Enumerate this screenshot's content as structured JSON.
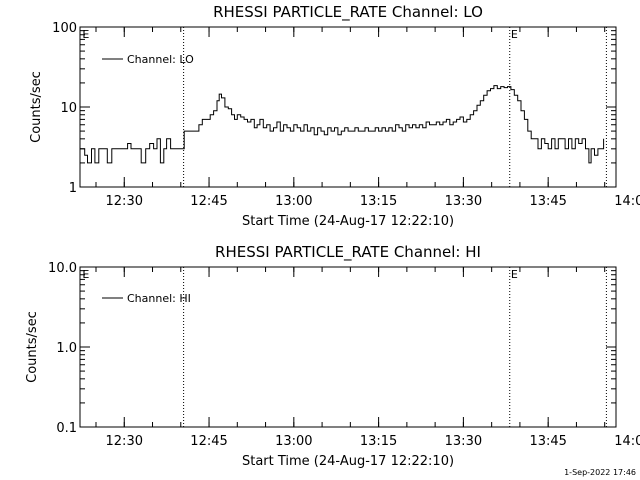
{
  "chart_data": [
    {
      "type": "line",
      "title": "RHESSI PARTICLE_RATE Channel: LO",
      "xlabel": "Start Time (24-Aug-17 12:22:10)",
      "ylabel": "Counts/sec",
      "yscale": "log",
      "ylim": [
        1,
        100
      ],
      "yticks": [
        1,
        10,
        100
      ],
      "yticklabels": [
        "1",
        "10",
        "100"
      ],
      "xlim_minutes": [
        22.17,
        117.0
      ],
      "xticks_minutes": [
        30,
        45,
        60,
        75,
        90,
        105,
        120
      ],
      "xticklabels": [
        "12:30",
        "12:45",
        "13:00",
        "13:15",
        "13:30",
        "13:45",
        "14:00"
      ],
      "vlines_minutes": [
        40.5,
        98.2,
        115.3
      ],
      "markers": [
        {
          "label": "E",
          "x_minutes": 22.6
        },
        {
          "label": "E",
          "x_minutes": 98.4
        }
      ],
      "grid": false,
      "legend_position": "top-left",
      "series": [
        {
          "name": "Channel: LO",
          "points": [
            [
              22.2,
              3
            ],
            [
              23.0,
              2.5
            ],
            [
              23.5,
              2
            ],
            [
              24.2,
              3
            ],
            [
              24.8,
              2
            ],
            [
              25.5,
              3
            ],
            [
              26.5,
              3
            ],
            [
              27.0,
              2
            ],
            [
              27.8,
              3
            ],
            [
              28.5,
              3
            ],
            [
              29.3,
              3
            ],
            [
              30.0,
              3
            ],
            [
              30.6,
              3.5
            ],
            [
              31.2,
              3
            ],
            [
              32.2,
              3
            ],
            [
              33.0,
              2
            ],
            [
              33.8,
              3
            ],
            [
              34.5,
              3.5
            ],
            [
              35.2,
              3
            ],
            [
              35.8,
              4
            ],
            [
              36.4,
              2
            ],
            [
              37.0,
              3
            ],
            [
              37.5,
              4
            ],
            [
              38.2,
              3
            ],
            [
              39.0,
              3
            ],
            [
              40.0,
              3
            ],
            [
              40.6,
              5
            ],
            [
              41.5,
              5
            ],
            [
              42.5,
              5
            ],
            [
              43.2,
              6
            ],
            [
              43.8,
              7
            ],
            [
              44.5,
              7
            ],
            [
              45.2,
              8
            ],
            [
              45.8,
              9
            ],
            [
              46.4,
              12
            ],
            [
              46.8,
              14.5
            ],
            [
              47.2,
              13
            ],
            [
              47.8,
              10
            ],
            [
              48.4,
              9.5
            ],
            [
              49.0,
              8
            ],
            [
              49.5,
              7
            ],
            [
              50.0,
              8
            ],
            [
              50.6,
              7.5
            ],
            [
              51.2,
              7
            ],
            [
              51.8,
              6.5
            ],
            [
              52.4,
              7
            ],
            [
              53.0,
              5.5
            ],
            [
              53.5,
              6
            ],
            [
              54.0,
              7
            ],
            [
              54.6,
              5.5
            ],
            [
              55.2,
              6
            ],
            [
              55.8,
              5
            ],
            [
              56.4,
              5.5
            ],
            [
              57.0,
              6.5
            ],
            [
              57.6,
              5
            ],
            [
              58.2,
              6
            ],
            [
              58.8,
              5.5
            ],
            [
              59.4,
              5
            ],
            [
              60.0,
              6
            ],
            [
              60.6,
              5.5
            ],
            [
              61.2,
              5
            ],
            [
              61.8,
              6
            ],
            [
              62.4,
              5
            ],
            [
              63.0,
              5.5
            ],
            [
              63.6,
              4.5
            ],
            [
              64.2,
              5.5
            ],
            [
              64.8,
              5
            ],
            [
              65.4,
              4.5
            ],
            [
              66.0,
              5.5
            ],
            [
              66.6,
              5
            ],
            [
              67.2,
              5.5
            ],
            [
              67.8,
              4.5
            ],
            [
              68.4,
              5
            ],
            [
              69.0,
              5.5
            ],
            [
              69.6,
              5
            ],
            [
              70.2,
              5
            ],
            [
              70.8,
              5.5
            ],
            [
              71.4,
              5
            ],
            [
              72.0,
              5
            ],
            [
              72.6,
              5.5
            ],
            [
              73.2,
              5
            ],
            [
              73.8,
              5
            ],
            [
              74.4,
              5.5
            ],
            [
              75.0,
              5
            ],
            [
              75.6,
              5.5
            ],
            [
              76.2,
              5
            ],
            [
              76.8,
              5.5
            ],
            [
              77.4,
              5
            ],
            [
              78.0,
              6
            ],
            [
              78.6,
              5.5
            ],
            [
              79.2,
              5
            ],
            [
              79.8,
              6
            ],
            [
              80.4,
              5.5
            ],
            [
              81.0,
              6
            ],
            [
              81.6,
              5.5
            ],
            [
              82.2,
              6
            ],
            [
              82.8,
              5.5
            ],
            [
              83.4,
              6.5
            ],
            [
              84.0,
              6
            ],
            [
              84.6,
              6
            ],
            [
              85.2,
              6.5
            ],
            [
              85.8,
              6
            ],
            [
              86.4,
              6.5
            ],
            [
              87.0,
              7
            ],
            [
              87.6,
              6
            ],
            [
              88.2,
              6.5
            ],
            [
              88.8,
              7
            ],
            [
              89.4,
              7.5
            ],
            [
              90.0,
              6.5
            ],
            [
              90.6,
              7
            ],
            [
              91.2,
              8
            ],
            [
              91.8,
              9
            ],
            [
              92.4,
              10.5
            ],
            [
              93.0,
              12
            ],
            [
              93.6,
              14
            ],
            [
              94.2,
              16
            ],
            [
              94.8,
              17
            ],
            [
              95.4,
              18.5
            ],
            [
              96.0,
              17
            ],
            [
              96.6,
              18
            ],
            [
              97.2,
              17.5
            ],
            [
              97.8,
              18
            ],
            [
              98.4,
              16.5
            ],
            [
              99.0,
              14
            ],
            [
              99.6,
              12
            ],
            [
              100.2,
              9
            ],
            [
              100.8,
              7
            ],
            [
              101.4,
              5
            ],
            [
              102.0,
              4
            ],
            [
              102.6,
              4
            ],
            [
              103.2,
              3
            ],
            [
              103.8,
              4
            ],
            [
              104.4,
              3.5
            ],
            [
              105.0,
              3
            ],
            [
              105.6,
              4
            ],
            [
              106.2,
              3
            ],
            [
              106.8,
              4
            ],
            [
              107.4,
              4
            ],
            [
              108.0,
              3
            ],
            [
              108.6,
              4
            ],
            [
              109.2,
              3
            ],
            [
              109.8,
              4
            ],
            [
              110.4,
              3.5
            ],
            [
              111.0,
              4
            ],
            [
              111.6,
              3
            ],
            [
              112.2,
              2
            ],
            [
              112.6,
              3
            ],
            [
              113.2,
              2.5
            ],
            [
              113.8,
              3
            ],
            [
              114.4,
              3
            ],
            [
              114.8,
              4
            ]
          ]
        }
      ]
    },
    {
      "type": "line",
      "title": "RHESSI PARTICLE_RATE Channel: HI",
      "xlabel": "Start Time (24-Aug-17 12:22:10)",
      "ylabel": "Counts/sec",
      "yscale": "log",
      "ylim": [
        0.1,
        10
      ],
      "yticks": [
        0.1,
        1,
        10
      ],
      "yticklabels": [
        "0.1",
        "1.0",
        "10.0"
      ],
      "xlim_minutes": [
        22.17,
        117.0
      ],
      "xticks_minutes": [
        30,
        45,
        60,
        75,
        90,
        105,
        120
      ],
      "xticklabels": [
        "12:30",
        "12:45",
        "13:00",
        "13:15",
        "13:30",
        "13:45",
        "14:00"
      ],
      "vlines_minutes": [
        40.5,
        98.2,
        115.3
      ],
      "markers": [
        {
          "label": "E",
          "x_minutes": 22.6
        },
        {
          "label": "E",
          "x_minutes": 98.4
        }
      ],
      "grid": false,
      "legend_position": "top-left",
      "series": [
        {
          "name": "Channel: HI",
          "points": []
        }
      ]
    }
  ],
  "footer": {
    "timestamp": "1-Sep-2022 17:46"
  }
}
